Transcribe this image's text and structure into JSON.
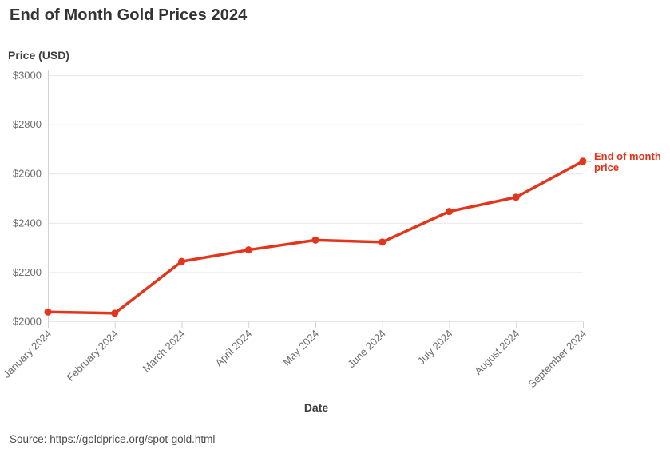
{
  "title": "End of Month Gold Prices 2024",
  "source": {
    "prefix": "Source: ",
    "url_text": "https://goldprice.org/spot-gold.html"
  },
  "annotation": {
    "line1": "End of month",
    "line2": "price"
  },
  "colors": {
    "line": "#e3351b",
    "annotation_text": "#e3351b",
    "grid": "#e7e7e7",
    "axis": "#d2d2d2",
    "tick_label": "#6d6d6d",
    "title_text": "#333333",
    "axis_title_text": "#3d3d3d",
    "source_text": "#4a4a4a",
    "annotation_dash": "#b5b5b5",
    "background": "#ffffff"
  },
  "chart_data": {
    "type": "line",
    "title": "End of Month Gold Prices 2024",
    "xlabel": "Date",
    "ylabel": "Price (USD)",
    "categories": [
      "January 2024",
      "February 2024",
      "March 2024",
      "April 2024",
      "May 2024",
      "June 2024",
      "July 2024",
      "August 2024",
      "September 2024"
    ],
    "series": [
      {
        "name": "End of month price",
        "values": [
          2038,
          2033,
          2243,
          2290,
          2330,
          2322,
          2446,
          2504,
          2650
        ]
      }
    ],
    "ylim": [
      2000,
      3000
    ],
    "yticks": [
      2000,
      2200,
      2400,
      2600,
      2800,
      3000
    ],
    "ytick_prefix": "$",
    "grid": true,
    "legend_position": "right-of-last-point",
    "marker": "circle"
  }
}
